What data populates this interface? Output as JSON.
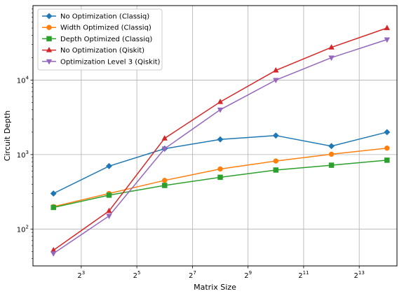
{
  "chart_data": {
    "type": "line",
    "title": "",
    "xlabel": "Matrix Size",
    "ylabel": "Circuit Depth",
    "x_scale": "log2",
    "y_scale": "log10",
    "xlim": [
      2.4,
      21000
    ],
    "ylim": [
      32,
      100000
    ],
    "x": [
      4,
      16,
      64,
      256,
      1024,
      4096,
      16384
    ],
    "x_ticks": [
      8,
      32,
      128,
      512,
      2048,
      8192
    ],
    "x_tick_labels": [
      {
        "base": "2",
        "exp": "3"
      },
      {
        "base": "2",
        "exp": "5"
      },
      {
        "base": "2",
        "exp": "7"
      },
      {
        "base": "2",
        "exp": "9"
      },
      {
        "base": "2",
        "exp": "11"
      },
      {
        "base": "2",
        "exp": "13"
      }
    ],
    "y_ticks": [
      100,
      1000,
      10000
    ],
    "y_tick_labels": [
      {
        "base": "10",
        "exp": "2"
      },
      {
        "base": "10",
        "exp": "3"
      },
      {
        "base": "10",
        "exp": "4"
      }
    ],
    "grid": true,
    "legend_position": "top-left",
    "series": [
      {
        "name": "No Optimization (Classiq)",
        "color": "#1f77b4",
        "marker": "diamond",
        "values": [
          300,
          700,
          1200,
          1600,
          1800,
          1300,
          2000
        ]
      },
      {
        "name": "Width Optimized (Classiq)",
        "color": "#ff7f0e",
        "marker": "circle",
        "values": [
          200,
          300,
          450,
          640,
          820,
          1010,
          1220
        ]
      },
      {
        "name": "Depth Optimized (Classiq)",
        "color": "#2ca02c",
        "marker": "square",
        "values": [
          195,
          285,
          385,
          495,
          620,
          720,
          840
        ]
      },
      {
        "name": "No Optimization (Qiskit)",
        "color": "#d62728",
        "marker": "triangle-up",
        "values": [
          52,
          175,
          1650,
          5100,
          13500,
          27500,
          50000
        ]
      },
      {
        "name": "Optimization Level 3 (Qiskit)",
        "color": "#9467bd",
        "marker": "triangle-down",
        "values": [
          47,
          150,
          1200,
          4000,
          10000,
          20000,
          35000
        ]
      }
    ]
  }
}
